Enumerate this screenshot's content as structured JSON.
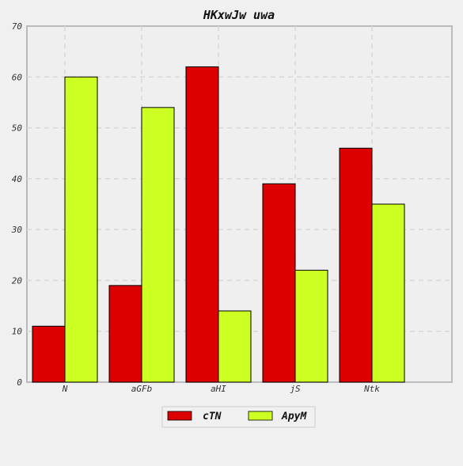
{
  "chart_data": {
    "type": "bar",
    "title": "HKxwJw uwa",
    "xlabel": "",
    "ylabel": "",
    "categories": [
      "N",
      "aGFb",
      "aHI",
      "jS",
      "Ntk"
    ],
    "series": [
      {
        "name": "cTN",
        "color": "#dd0000",
        "values": [
          11,
          19,
          62,
          39,
          46
        ]
      },
      {
        "name": "ApyM",
        "color": "#ccff22",
        "values": [
          60,
          54,
          14,
          22,
          35
        ]
      }
    ],
    "ylim": [
      0,
      70
    ],
    "yticks": [
      0,
      10,
      20,
      30,
      40,
      50,
      60,
      70
    ],
    "grid": true,
    "legend_position": "bottom-center"
  }
}
